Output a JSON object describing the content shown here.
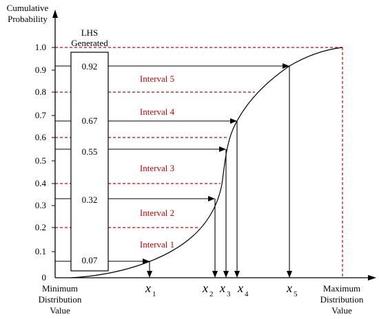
{
  "axis": {
    "y_title_line1": "Cumulative",
    "y_title_line2": "Probability",
    "y_ticks": [
      "0",
      "0.1",
      "0.2",
      "0.3",
      "0.4",
      "0.5",
      "0.6",
      "0.7",
      "0.8",
      "0.9",
      "1.0"
    ],
    "x_min_line1": "Minimum",
    "x_min_line2": "Distribution",
    "x_min_line3": "Value",
    "x_max_line1": "Maximum",
    "x_max_line2": "Distribution",
    "x_max_line3": "Value"
  },
  "lhs_box": {
    "header_line1": "LHS",
    "header_line2": "Generated",
    "samples": [
      "0.92",
      "0.67",
      "0.55",
      "0.32",
      "0.07"
    ]
  },
  "intervals": [
    "Interval 5",
    "Interval 4",
    "Interval 3",
    "Interval 2",
    "Interval 1"
  ],
  "x_labels": [
    "x",
    "x",
    "x",
    "x",
    "x"
  ],
  "x_subscripts": [
    "1",
    "2",
    "3",
    "4",
    "5"
  ],
  "colors": {
    "line": "#000000",
    "interval": "#cc0000"
  }
}
